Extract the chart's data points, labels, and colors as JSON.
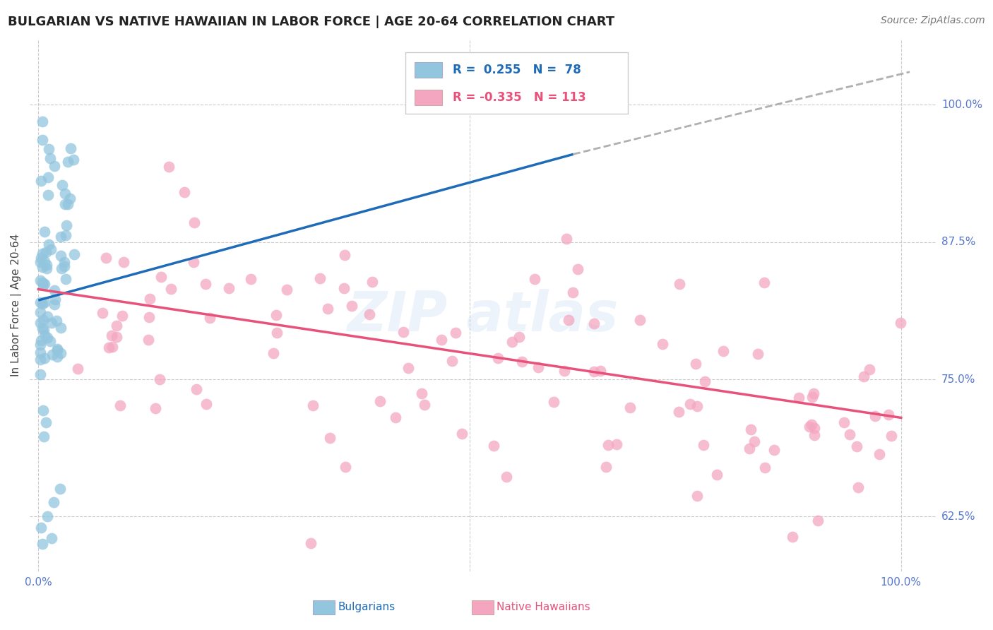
{
  "title": "BULGARIAN VS NATIVE HAWAIIAN IN LABOR FORCE | AGE 20-64 CORRELATION CHART",
  "source": "Source: ZipAtlas.com",
  "ylabel": "In Labor Force | Age 20-64",
  "xlim": [
    -0.01,
    1.04
  ],
  "ylim": [
    0.575,
    1.06
  ],
  "yticks": [
    0.625,
    0.75,
    0.875,
    1.0
  ],
  "ytick_labels": [
    "62.5%",
    "75.0%",
    "87.5%",
    "100.0%"
  ],
  "legend_R_blue": " 0.255",
  "legend_N_blue": "78",
  "legend_R_pink": "-0.335",
  "legend_N_pink": "113",
  "blue_scatter_color": "#92c5de",
  "pink_scatter_color": "#f4a6c0",
  "line_blue_color": "#1e6bb8",
  "line_pink_color": "#e8527a",
  "line_dashed_color": "#b0b0b0",
  "grid_color": "#cccccc",
  "tick_label_color": "#5577cc",
  "bg_line_start_y": 0.822,
  "bg_line_end_solid_x": 0.62,
  "bg_line_end_solid_y": 0.955,
  "bg_line_end_dash_x": 1.01,
  "bg_line_end_dash_y": 1.03,
  "nh_line_start_x": 0.0,
  "nh_line_start_y": 0.832,
  "nh_line_end_x": 1.0,
  "nh_line_end_y": 0.715
}
